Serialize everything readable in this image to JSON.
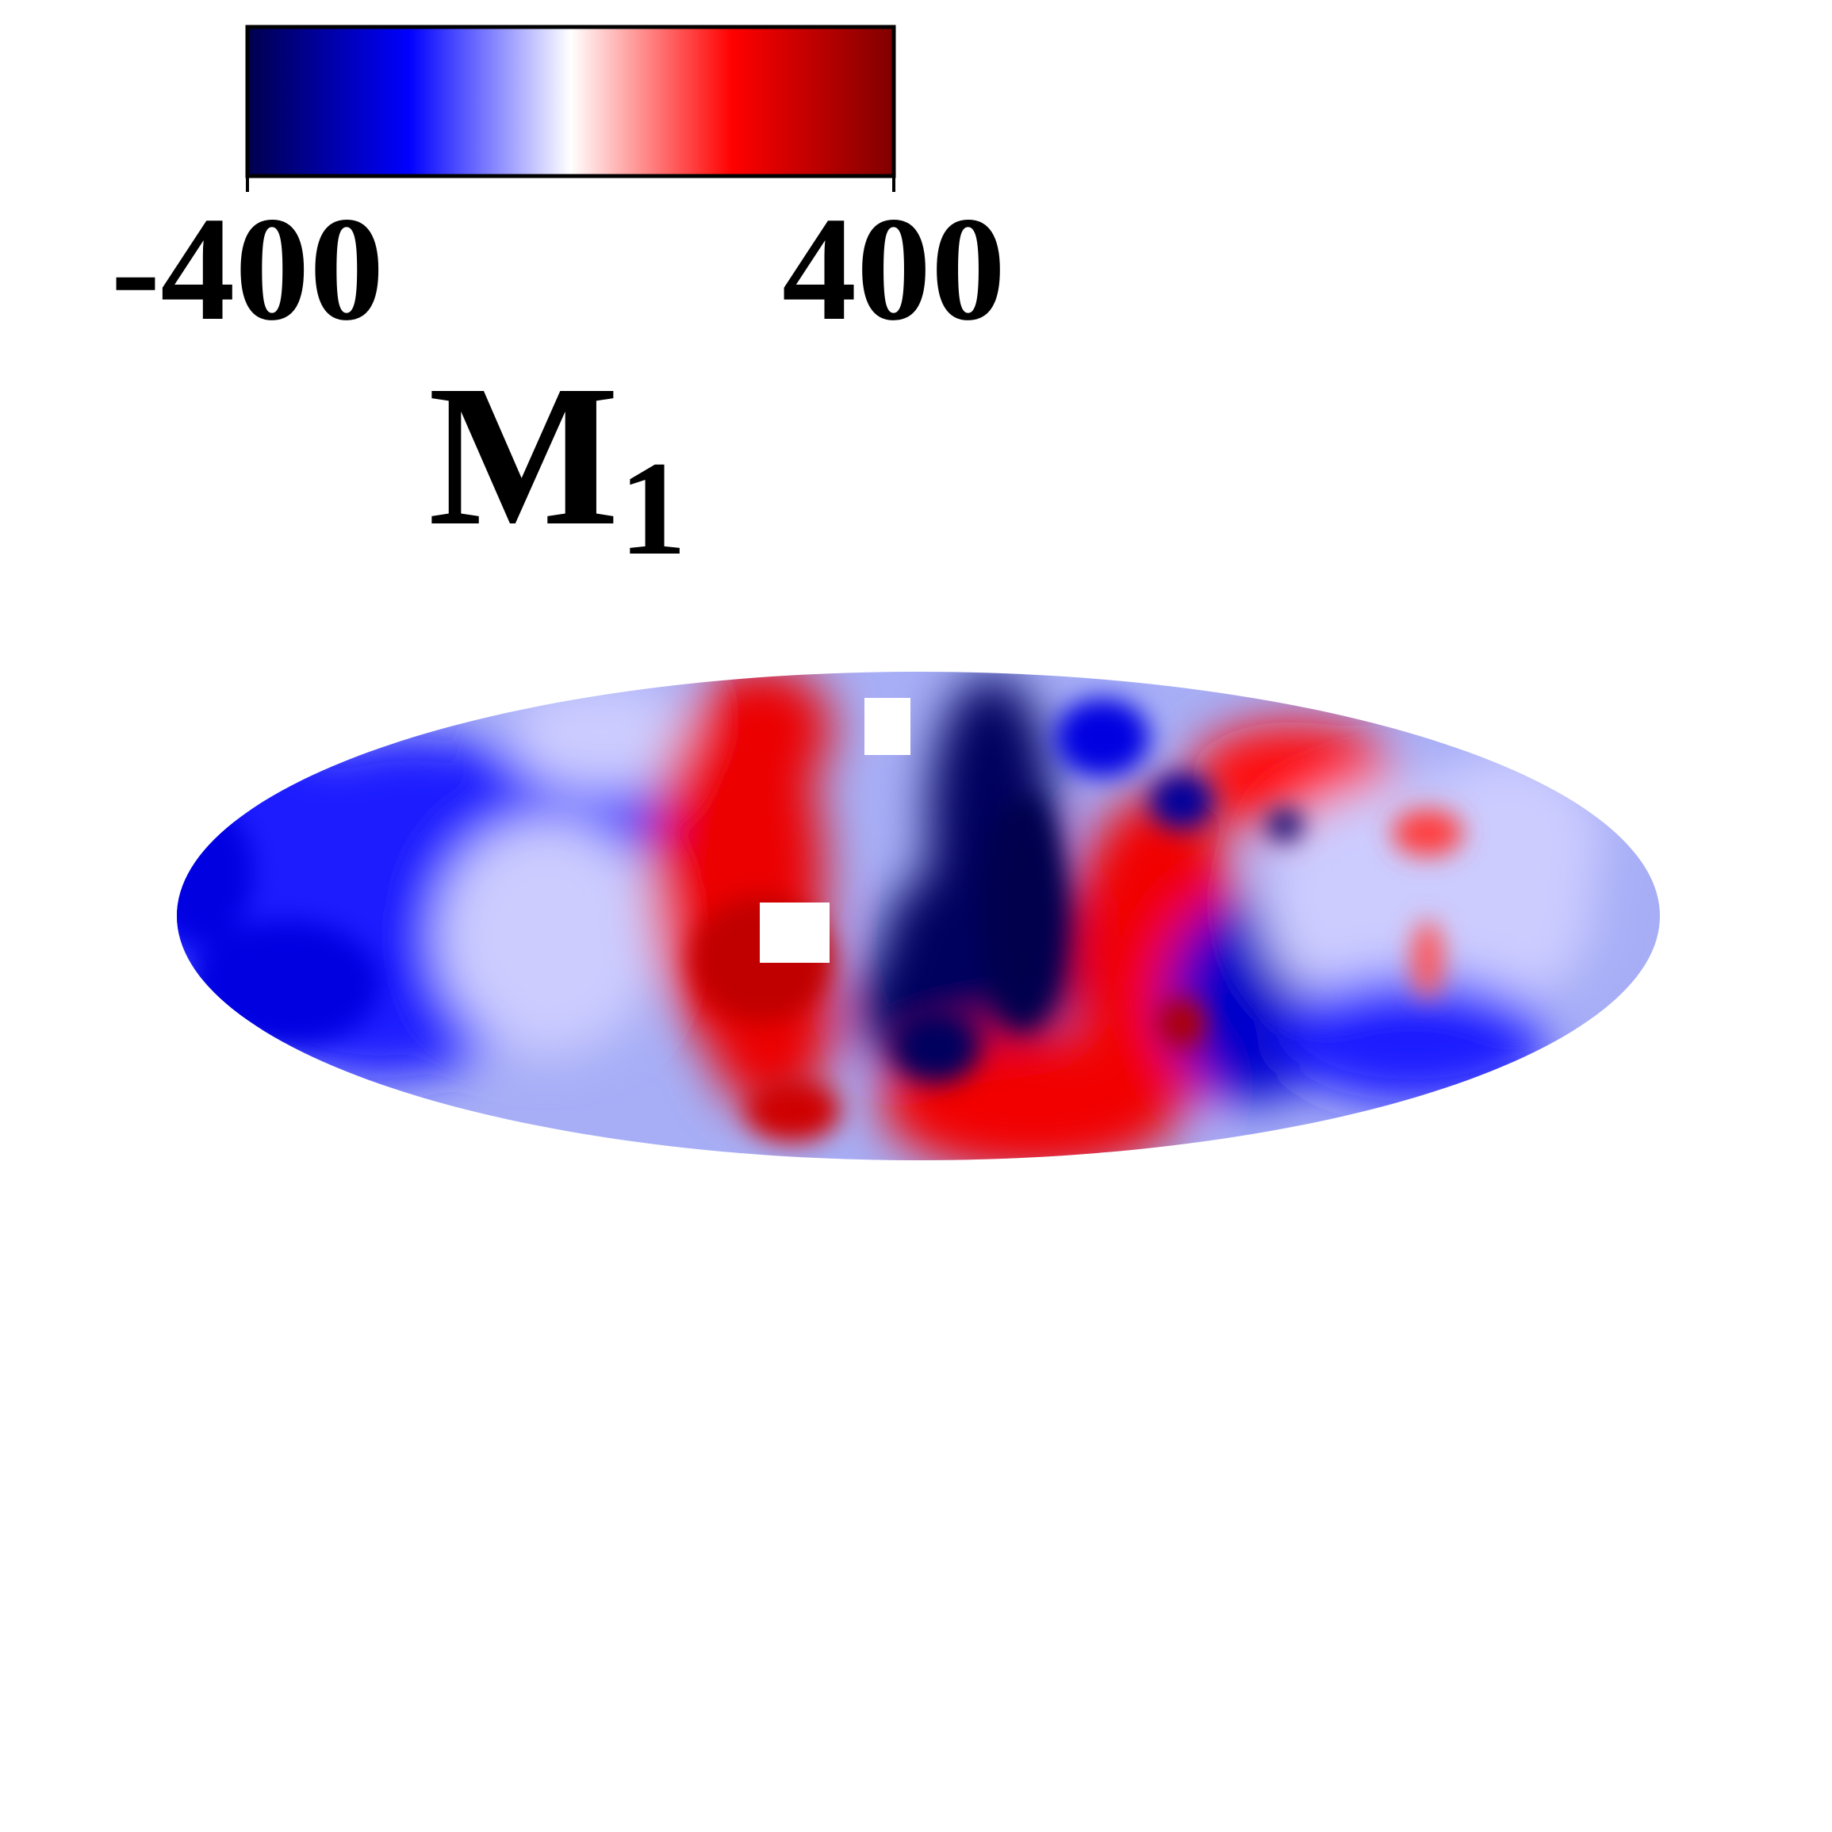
{
  "chart_data": {
    "type": "heatmap",
    "projection": "mollweide",
    "colorbar": {
      "label_main": "M",
      "label_sub": "1",
      "min": -400,
      "max": 400,
      "min_label": "-400",
      "max_label": "400",
      "colormap": [
        "#00004d",
        "#0000ff",
        "#ffffff",
        "#ff0000",
        "#800000"
      ],
      "placement": "top-left"
    },
    "features": [
      {
        "name": "western-blue-region",
        "value": -180
      },
      {
        "name": "central-red-band",
        "value": 230
      },
      {
        "name": "central-deep-blue-trough",
        "value": -380
      },
      {
        "name": "southern-red-lobe",
        "value": 220
      },
      {
        "name": "northeast-red-patch",
        "value": 190
      },
      {
        "name": "eastern-blue-patch",
        "value": -260
      },
      {
        "name": "far-east-pale-region",
        "value": -40
      }
    ]
  }
}
